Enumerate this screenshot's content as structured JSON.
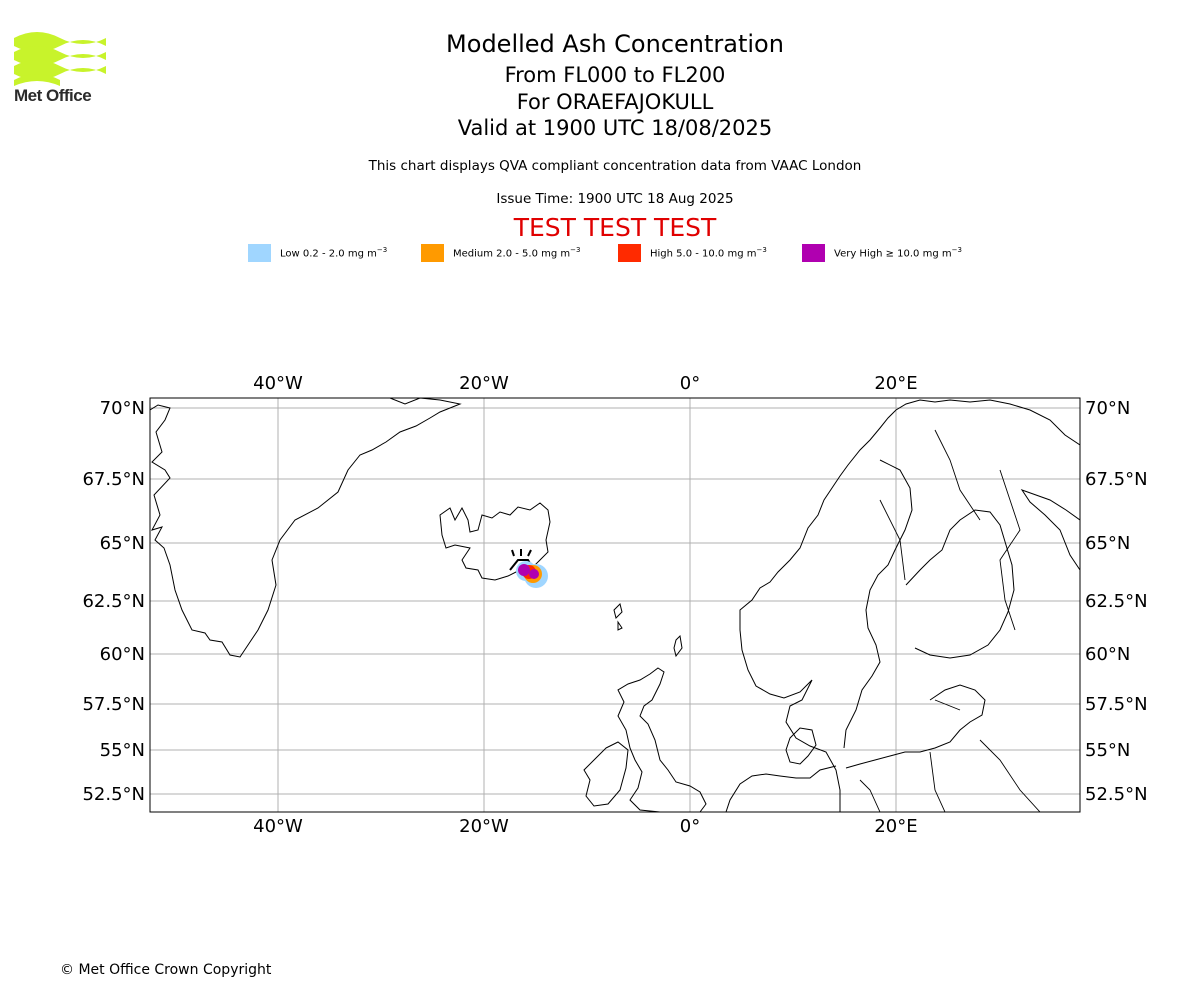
{
  "logo": {
    "text": "Met Office",
    "color": "#c8f32b"
  },
  "header": {
    "title": "Modelled Ash Concentration",
    "levels": "From FL000 to FL200",
    "volcano": "For ORAEFAJOKULL",
    "valid": "Valid at 1900 UTC 18/08/2025",
    "subtitle": "This chart displays QVA compliant concentration data from VAAC London",
    "issue_time": "Issue Time: 1900 UTC 18 Aug 2025",
    "test_banner": "TEST TEST TEST"
  },
  "legend": [
    {
      "label": "Low 0.2 - 2.0 mg m",
      "unit_exp": "−3",
      "color": "#a0d6ff"
    },
    {
      "label": "Medium 2.0 - 5.0 mg m",
      "unit_exp": "−3",
      "color": "#ff9a00"
    },
    {
      "label": "High 5.0 - 10.0 mg m",
      "unit_exp": "−3",
      "color": "#ff2a00"
    },
    {
      "label": "Very High  ≥  10.0 mg m",
      "unit_exp": "−3",
      "color": "#b000b0"
    }
  ],
  "map": {
    "lon_labels": [
      "40°W",
      "20°W",
      "0°",
      "20°E"
    ],
    "lat_labels": [
      "70°N",
      "67.5°N",
      "65°N",
      "62.5°N",
      "60°N",
      "57.5°N",
      "55°N",
      "52.5°N"
    ],
    "extent": {
      "lon_min": -52.5,
      "lon_max": 38,
      "lat_min": 51.7,
      "lat_max": 70.4
    },
    "volcano": {
      "name": "ORAEFAJOKULL",
      "lon": -16.6,
      "lat": 64.0
    },
    "ash_plume": [
      {
        "level": "Low",
        "lon": -14.7,
        "lat": 63.6
      },
      {
        "level": "Medium",
        "lon": -15.0,
        "lat": 63.65
      },
      {
        "level": "High",
        "lon": -15.2,
        "lat": 63.7
      },
      {
        "level": "Very High",
        "lon": -15.5,
        "lat": 63.75
      }
    ]
  },
  "footer": {
    "copyright": "© Met Office Crown Copyright"
  }
}
